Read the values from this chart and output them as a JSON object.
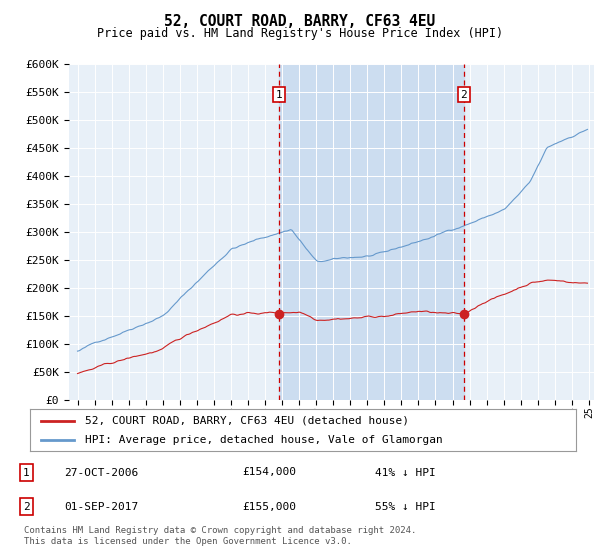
{
  "title": "52, COURT ROAD, BARRY, CF63 4EU",
  "subtitle": "Price paid vs. HM Land Registry's House Price Index (HPI)",
  "hpi_label": "HPI: Average price, detached house, Vale of Glamorgan",
  "price_label": "52, COURT ROAD, BARRY, CF63 4EU (detached house)",
  "plot_bg_color": "#e8f0f8",
  "hpi_color": "#6699cc",
  "price_color": "#cc2222",
  "vline_color": "#cc0000",
  "highlight_color": "#ccddf0",
  "annotation_box_color": "#ffffff",
  "annotation_box_edge": "#cc0000",
  "footnote": "Contains HM Land Registry data © Crown copyright and database right 2024.\nThis data is licensed under the Open Government Licence v3.0.",
  "ylim": [
    0,
    600000
  ],
  "yticks": [
    0,
    50000,
    100000,
    150000,
    200000,
    250000,
    300000,
    350000,
    400000,
    450000,
    500000,
    550000,
    600000
  ],
  "transaction1": {
    "date": "27-OCT-2006",
    "price": 154000,
    "label": "1",
    "hpi_pct": "41% ↓ HPI"
  },
  "transaction2": {
    "date": "01-SEP-2017",
    "price": 155000,
    "label": "2",
    "hpi_pct": "55% ↓ HPI"
  },
  "t1_x": 2006.83,
  "t2_x": 2017.67,
  "xlim_left": 1994.5,
  "xlim_right": 2025.3
}
